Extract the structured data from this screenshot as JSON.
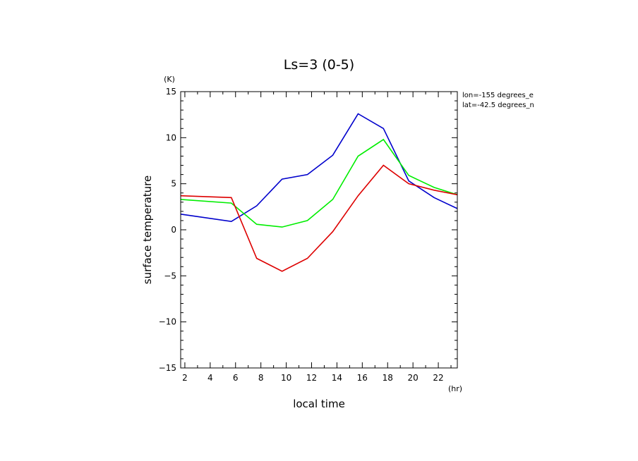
{
  "chart_data": {
    "type": "line",
    "title": "Ls=3 (0-5)",
    "xlabel": "local time",
    "ylabel": "surface temperature",
    "xunit": "(hr)",
    "yunit": "(K)",
    "annotations": [
      "lon=-155 degrees_e",
      "lat=-42.5 degrees_n"
    ],
    "xlim": [
      1.67,
      23.5
    ],
    "ylim": [
      -15,
      15
    ],
    "xticks": [
      2,
      4,
      6,
      8,
      10,
      12,
      14,
      16,
      18,
      20,
      22
    ],
    "yticks": [
      -15,
      -10,
      -5,
      0,
      5,
      10,
      15
    ],
    "grid": false,
    "x": [
      1.67,
      5.67,
      7.67,
      9.67,
      11.67,
      13.67,
      15.67,
      17.67,
      19.67,
      21.67,
      23.5
    ],
    "series": [
      {
        "color": "#0000cc",
        "values": [
          1.7,
          0.9,
          2.6,
          5.5,
          6.0,
          8.1,
          12.6,
          11.0,
          5.3,
          3.5,
          2.3
        ]
      },
      {
        "color": "#00ee00",
        "values": [
          3.3,
          2.9,
          0.6,
          0.3,
          1.0,
          3.3,
          8.0,
          9.8,
          5.9,
          4.6,
          3.8
        ]
      },
      {
        "color": "#dd0000",
        "values": [
          3.7,
          3.5,
          -3.1,
          -4.5,
          -3.1,
          -0.2,
          3.7,
          7.0,
          5.0,
          4.3,
          3.8
        ]
      }
    ]
  }
}
